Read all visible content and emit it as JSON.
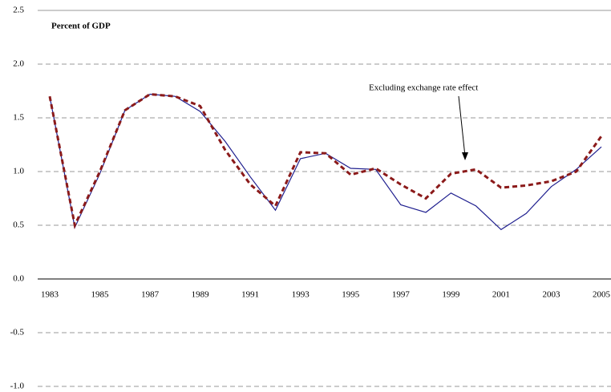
{
  "chart_data": {
    "type": "line",
    "title": "Percent of GDP",
    "annotation": "Excluding exchange rate effect",
    "categories": [
      "1983",
      null,
      "1985",
      null,
      "1987",
      null,
      "1989",
      null,
      "1991",
      null,
      "1993",
      null,
      "1995",
      null,
      "1997",
      null,
      "1999",
      null,
      "2001",
      null,
      "2003",
      null,
      "2005"
    ],
    "series": [
      {
        "color": "#1f1f8f",
        "dash": false,
        "values": [
          1.7,
          0.48,
          0.98,
          1.57,
          1.72,
          1.7,
          1.56,
          1.28,
          0.95,
          0.64,
          1.12,
          1.17,
          1.03,
          1.02,
          0.69,
          0.62,
          0.8,
          0.68,
          0.46,
          0.61,
          0.86,
          1.02,
          1.23
        ]
      },
      {
        "color": "#8b1a1a",
        "dash": true,
        "values": [
          1.7,
          0.5,
          1.0,
          1.57,
          1.72,
          1.7,
          1.61,
          1.2,
          0.88,
          0.68,
          1.18,
          1.17,
          0.97,
          1.03,
          0.88,
          0.75,
          0.98,
          1.02,
          0.85,
          0.87,
          0.91,
          1.0,
          1.33
        ]
      }
    ],
    "ylim": [
      -1,
      2.5
    ],
    "yticks": [
      {
        "value": -1,
        "label": "-1.0"
      },
      -0.5,
      {
        "value": 0,
        "label": "0.0"
      },
      0.5,
      {
        "value": 1,
        "label": "1.0"
      },
      1.5,
      {
        "value": 2,
        "label": "2.0"
      },
      2.5
    ],
    "grid": true
  }
}
